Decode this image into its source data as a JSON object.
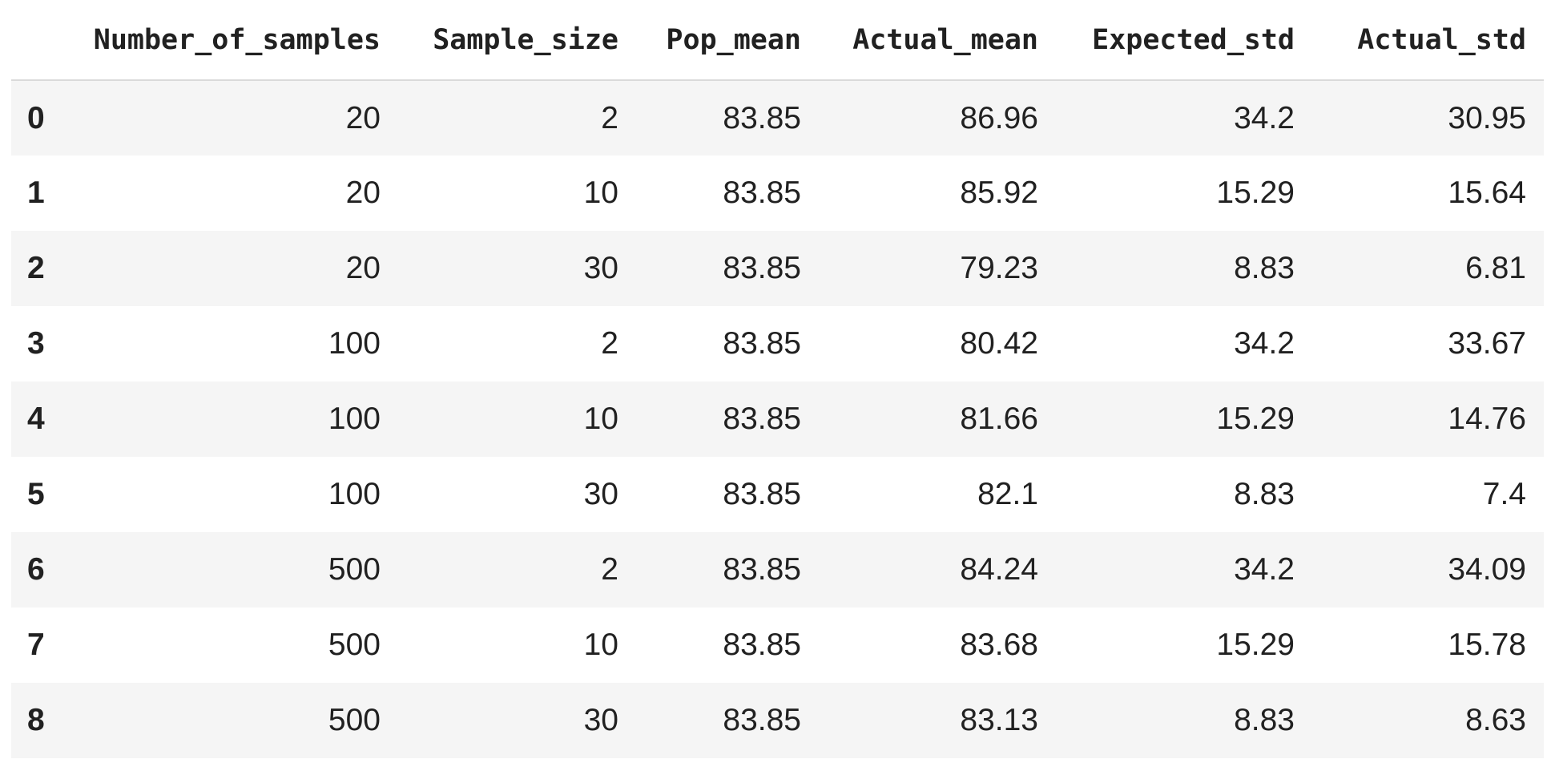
{
  "table": {
    "columns": [
      "Number_of_samples",
      "Sample_size",
      "Pop_mean",
      "Actual_mean",
      "Expected_std",
      "Actual_std"
    ],
    "rows": [
      {
        "index": "0",
        "cells": [
          "20",
          "2",
          "83.85",
          "86.96",
          "34.2",
          "30.95"
        ]
      },
      {
        "index": "1",
        "cells": [
          "20",
          "10",
          "83.85",
          "85.92",
          "15.29",
          "15.64"
        ]
      },
      {
        "index": "2",
        "cells": [
          "20",
          "30",
          "83.85",
          "79.23",
          "8.83",
          "6.81"
        ]
      },
      {
        "index": "3",
        "cells": [
          "100",
          "2",
          "83.85",
          "80.42",
          "34.2",
          "33.67"
        ]
      },
      {
        "index": "4",
        "cells": [
          "100",
          "10",
          "83.85",
          "81.66",
          "15.29",
          "14.76"
        ]
      },
      {
        "index": "5",
        "cells": [
          "100",
          "30",
          "83.85",
          "82.1",
          "8.83",
          "7.4"
        ]
      },
      {
        "index": "6",
        "cells": [
          "500",
          "2",
          "83.85",
          "84.24",
          "34.2",
          "34.09"
        ]
      },
      {
        "index": "7",
        "cells": [
          "500",
          "10",
          "83.85",
          "83.68",
          "15.29",
          "15.78"
        ]
      },
      {
        "index": "8",
        "cells": [
          "500",
          "30",
          "83.85",
          "83.13",
          "8.83",
          "8.63"
        ]
      }
    ]
  },
  "colors": {
    "text": "#212121",
    "stripe": "#f5f5f5",
    "header_rule": "#dadada"
  }
}
